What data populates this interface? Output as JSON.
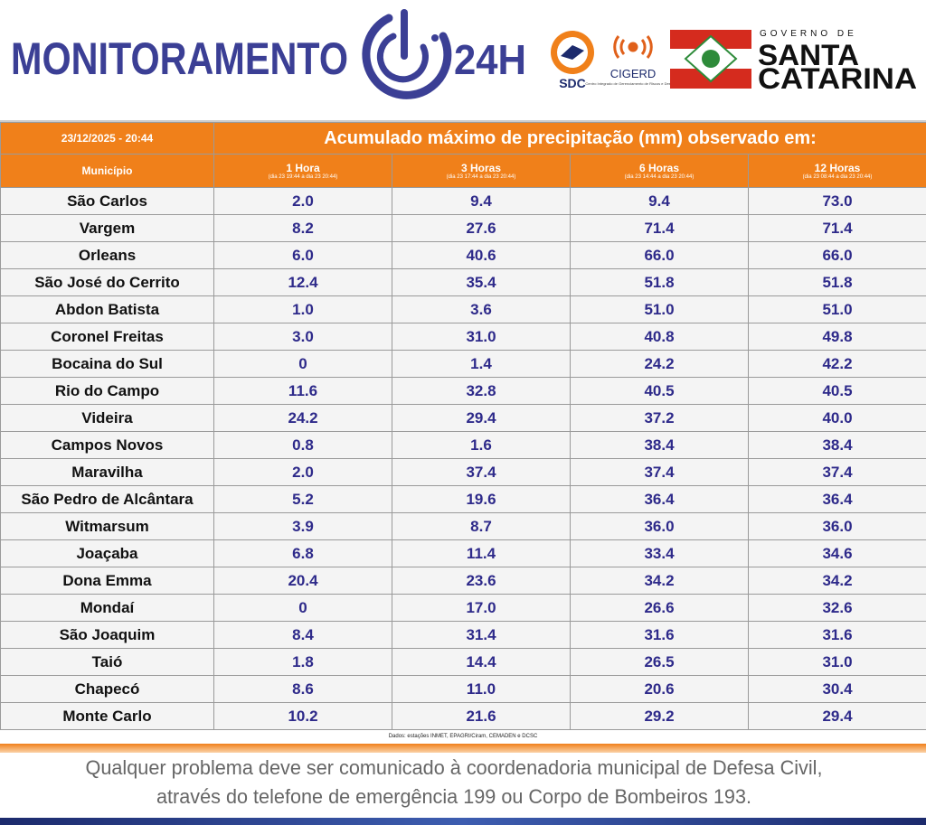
{
  "header": {
    "brand": "MONITORAMENTO",
    "brand_suffix": "24H",
    "sdc": "SDC",
    "cigerd": "CIGERD",
    "cigerd_subtitle": "Centro Integrado de Gerenciamento de Riscos e Desastres",
    "government": "GOVERNO DE",
    "state_line1": "SANTA",
    "state_line2": "CATARINA"
  },
  "table": {
    "timestamp": "23/12/2025 - 20:44",
    "title": "Acumulado máximo de precipitação (mm) observado em:",
    "municipality_header": "Município",
    "columns": [
      {
        "label": "1 Hora",
        "period": "(dia 23 19:44 a dia 23 20:44)"
      },
      {
        "label": "3 Horas",
        "period": "(dia 23 17:44 a dia 23 20:44)"
      },
      {
        "label": "6 Horas",
        "period": "(dia 23 14:44 a dia 23 20:44)"
      },
      {
        "label": "12 Horas",
        "period": "(dia 23 08:44 a dia 23 20:44)"
      }
    ],
    "rows": [
      [
        "São Carlos",
        "2.0",
        "9.4",
        "9.4",
        "73.0"
      ],
      [
        "Vargem",
        "8.2",
        "27.6",
        "71.4",
        "71.4"
      ],
      [
        "Orleans",
        "6.0",
        "40.6",
        "66.0",
        "66.0"
      ],
      [
        "São José do Cerrito",
        "12.4",
        "35.4",
        "51.8",
        "51.8"
      ],
      [
        "Abdon Batista",
        "1.0",
        "3.6",
        "51.0",
        "51.0"
      ],
      [
        "Coronel Freitas",
        "3.0",
        "31.0",
        "40.8",
        "49.8"
      ],
      [
        "Bocaina do Sul",
        "0",
        "1.4",
        "24.2",
        "42.2"
      ],
      [
        "Rio do Campo",
        "11.6",
        "32.8",
        "40.5",
        "40.5"
      ],
      [
        "Videira",
        "24.2",
        "29.4",
        "37.2",
        "40.0"
      ],
      [
        "Campos Novos",
        "0.8",
        "1.6",
        "38.4",
        "38.4"
      ],
      [
        "Maravilha",
        "2.0",
        "37.4",
        "37.4",
        "37.4"
      ],
      [
        "São Pedro de Alcântara",
        "5.2",
        "19.6",
        "36.4",
        "36.4"
      ],
      [
        "Witmarsum",
        "3.9",
        "8.7",
        "36.0",
        "36.0"
      ],
      [
        "Joaçaba",
        "6.8",
        "11.4",
        "33.4",
        "34.6"
      ],
      [
        "Dona Emma",
        "20.4",
        "23.6",
        "34.2",
        "34.2"
      ],
      [
        "Mondaí",
        "0",
        "17.0",
        "26.6",
        "32.6"
      ],
      [
        "São Joaquim",
        "8.4",
        "31.4",
        "31.6",
        "31.6"
      ],
      [
        "Taió",
        "1.8",
        "14.4",
        "26.5",
        "31.0"
      ],
      [
        "Chapecó",
        "8.6",
        "11.0",
        "20.6",
        "30.4"
      ],
      [
        "Monte Carlo",
        "10.2",
        "21.6",
        "29.2",
        "29.4"
      ]
    ],
    "source": "Dados: estações INMET, EPAGRI/Ciram, CEMADEN e DCSC"
  },
  "footer": {
    "line1": "Qualquer problema deve ser comunicado à coordenadoria municipal de Defesa Civil,",
    "line2": "através do telefone de emergência 199 ou Corpo de Bombeiros 193."
  }
}
